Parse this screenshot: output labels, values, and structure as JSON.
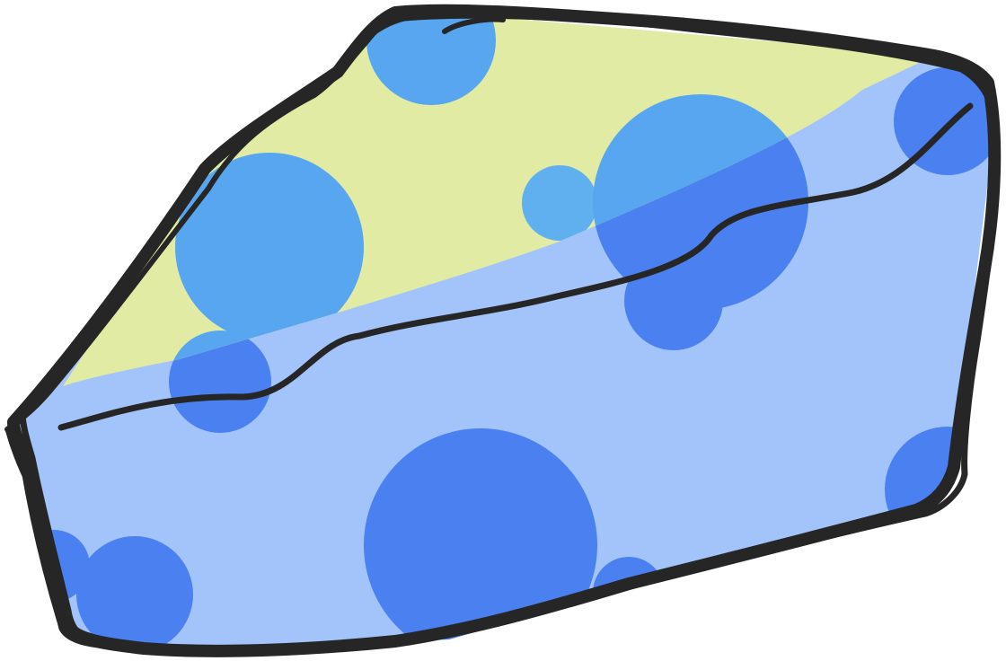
{
  "illustration": {
    "subject": "cheese-wedge",
    "colors": {
      "top_face": "#e1eba4",
      "side_face": "#a3c4fb",
      "hole_top": "#57a6ef",
      "hole_side": "#4a80ef",
      "hole_light": "#60b0f0",
      "outline": "#262626",
      "accent_pink": "#d8a0c8"
    }
  }
}
